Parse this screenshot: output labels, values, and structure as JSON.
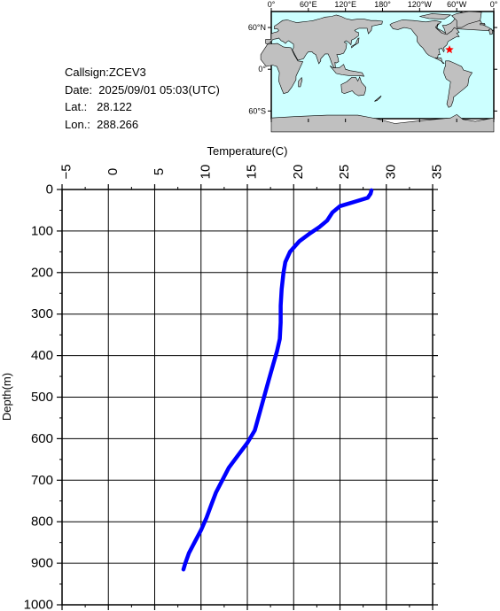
{
  "header": {
    "callsign": "Callsign:ZCEV3",
    "date": "Date:  2025/09/01 05:03(UTC)",
    "lat": "Lat.:   28.122",
    "lon": "Lon.:  288.266"
  },
  "map": {
    "top_labels": [
      "0°",
      "60°E",
      "120°E",
      "180°",
      "120°W",
      "60°W",
      "0°"
    ],
    "left_labels": [
      "60°N",
      "0°",
      "60°S"
    ],
    "ocean_color": "#ccffff",
    "land_color": "#c0c0c0",
    "marker_color": "#ff0000",
    "marker": {
      "lat": 28.122,
      "lon": 288.266
    }
  },
  "chart_data": {
    "type": "line",
    "xlabel": "Temperature(C)",
    "ylabel": "Depth(m)",
    "xlim": [
      -5,
      35
    ],
    "ylim": [
      0,
      1000
    ],
    "x_ticks": [
      "-5",
      "0",
      "5",
      "10",
      "15",
      "20",
      "25",
      "30",
      "35"
    ],
    "y_ticks": [
      "0",
      "100",
      "200",
      "300",
      "400",
      "500",
      "600",
      "700",
      "800",
      "900",
      "1000"
    ],
    "series": [
      {
        "color": "#0000ff",
        "points": [
          [
            28.4,
            2
          ],
          [
            28.3,
            10
          ],
          [
            28.0,
            20
          ],
          [
            26.5,
            30
          ],
          [
            25.0,
            40
          ],
          [
            24.2,
            55
          ],
          [
            23.6,
            75
          ],
          [
            22.8,
            90
          ],
          [
            21.8,
            105
          ],
          [
            20.6,
            125
          ],
          [
            19.6,
            150
          ],
          [
            19.1,
            175
          ],
          [
            18.9,
            200
          ],
          [
            18.7,
            240
          ],
          [
            18.6,
            280
          ],
          [
            18.6,
            320
          ],
          [
            18.5,
            360
          ],
          [
            18.2,
            390
          ],
          [
            17.8,
            420
          ],
          [
            17.3,
            460
          ],
          [
            16.8,
            500
          ],
          [
            16.3,
            540
          ],
          [
            15.8,
            580
          ],
          [
            15.0,
            610
          ],
          [
            14.0,
            640
          ],
          [
            13.0,
            670
          ],
          [
            12.3,
            700
          ],
          [
            11.6,
            730
          ],
          [
            11.1,
            760
          ],
          [
            10.6,
            790
          ],
          [
            10.0,
            820
          ],
          [
            9.3,
            850
          ],
          [
            8.7,
            875
          ],
          [
            8.3,
            900
          ],
          [
            8.1,
            915
          ]
        ]
      }
    ],
    "grid": true
  }
}
